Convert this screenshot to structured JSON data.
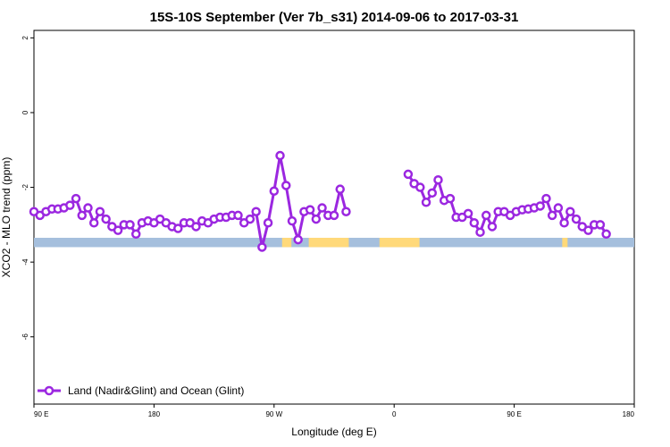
{
  "chart_data": {
    "type": "line",
    "title": "15S-10S September (Ver 7b_s31)   2014-09-06 to 2017-03-31",
    "xlabel": "Longitude (deg E)",
    "ylabel": "XCO2 - MLO trend (ppm)",
    "xlim": [
      90,
      450
    ],
    "ylim": [
      -7.8,
      2.2
    ],
    "x_ticks": [
      {
        "value": 90,
        "label": "90 E"
      },
      {
        "value": 180,
        "label": "180"
      },
      {
        "value": 270,
        "label": "90 W"
      },
      {
        "value": 360,
        "label": "0"
      },
      {
        "value": 450,
        "label": "90 E"
      },
      {
        "value": 540,
        "label": "180"
      }
    ],
    "y_ticks": [
      {
        "value": 2,
        "label": "2"
      },
      {
        "value": 0,
        "label": "0"
      },
      {
        "value": -2,
        "label": "-2"
      },
      {
        "value": -4,
        "label": "-4"
      },
      {
        "value": -6,
        "label": "-6"
      }
    ],
    "x_display_max": 540,
    "grid": false,
    "legend_position": "bottom-left",
    "surface_band": {
      "y_top": -3.35,
      "y_bottom": -3.6,
      "ocean_color": "#a5bfdd",
      "land_color": "#ffd97a",
      "land_segments": [
        [
          276,
          283
        ],
        [
          296,
          326
        ],
        [
          349,
          379
        ],
        [
          486,
          490
        ]
      ]
    },
    "series": [
      {
        "name": "Land (Nadir&Glint) and Ocean (Glint)",
        "color": "#9b27e0",
        "points": [
          [
            90,
            -2.65
          ],
          [
            94.5,
            -2.75
          ],
          [
            99,
            -2.65
          ],
          [
            103.5,
            -2.58
          ],
          [
            108,
            -2.58
          ],
          [
            112.5,
            -2.55
          ],
          [
            117,
            -2.48
          ],
          [
            121.5,
            -2.3
          ],
          [
            126,
            -2.75
          ],
          [
            130.5,
            -2.55
          ],
          [
            135,
            -2.95
          ],
          [
            139.5,
            -2.65
          ],
          [
            144,
            -2.85
          ],
          [
            148.5,
            -3.05
          ],
          [
            153,
            -3.15
          ],
          [
            157.5,
            -3.0
          ],
          [
            162,
            -3.0
          ],
          [
            166.5,
            -3.25
          ],
          [
            171,
            -2.95
          ],
          [
            175.5,
            -2.9
          ],
          [
            180,
            -2.95
          ],
          [
            184.5,
            -2.85
          ],
          [
            189,
            -2.95
          ],
          [
            193.5,
            -3.05
          ],
          [
            198,
            -3.1
          ],
          [
            202.5,
            -2.95
          ],
          [
            207,
            -2.95
          ],
          [
            211.5,
            -3.05
          ],
          [
            216,
            -2.9
          ],
          [
            220.5,
            -2.95
          ],
          [
            225,
            -2.85
          ],
          [
            229.5,
            -2.8
          ],
          [
            234,
            -2.8
          ],
          [
            238.5,
            -2.75
          ],
          [
            243,
            -2.75
          ],
          [
            247.5,
            -2.95
          ],
          [
            252,
            -2.85
          ],
          [
            256.5,
            -2.65
          ],
          [
            261,
            -3.6
          ],
          [
            265.5,
            -2.95
          ],
          [
            270,
            -2.1
          ],
          [
            274.5,
            -1.15
          ],
          [
            279,
            -1.95
          ],
          [
            283.5,
            -2.9
          ],
          [
            288,
            -3.4
          ],
          [
            292.5,
            -2.65
          ],
          [
            297,
            -2.6
          ],
          [
            301.5,
            -2.85
          ],
          [
            306,
            -2.55
          ],
          [
            310.5,
            -2.75
          ],
          [
            315,
            -2.75
          ],
          [
            319.5,
            -2.05
          ],
          [
            324,
            -2.65
          ],
          null,
          [
            370.5,
            -1.65
          ],
          [
            375,
            -1.9
          ],
          [
            379.5,
            -2.0
          ],
          [
            384,
            -2.4
          ],
          [
            388.5,
            -2.15
          ],
          [
            393,
            -1.8
          ],
          [
            397.5,
            -2.35
          ],
          [
            402,
            -2.3
          ],
          [
            406.5,
            -2.8
          ],
          [
            411,
            -2.8
          ],
          [
            415.5,
            -2.7
          ],
          [
            420,
            -2.95
          ],
          [
            424.5,
            -3.2
          ],
          [
            429,
            -2.75
          ],
          [
            433.5,
            -3.05
          ],
          [
            438,
            -2.65
          ],
          [
            442.5,
            -2.65
          ],
          [
            447,
            -2.75
          ],
          [
            451.5,
            -2.65
          ],
          [
            456,
            -2.6
          ],
          [
            460.5,
            -2.58
          ],
          [
            465,
            -2.55
          ],
          [
            469.5,
            -2.5
          ],
          [
            474,
            -2.3
          ],
          [
            478.5,
            -2.75
          ],
          [
            483,
            -2.55
          ],
          [
            487.5,
            -2.95
          ],
          [
            492,
            -2.65
          ],
          [
            496.5,
            -2.85
          ],
          [
            501,
            -3.05
          ],
          [
            505.5,
            -3.15
          ],
          [
            510,
            -3.0
          ],
          [
            514.5,
            -3.0
          ],
          [
            519,
            -3.25
          ]
        ]
      }
    ]
  }
}
